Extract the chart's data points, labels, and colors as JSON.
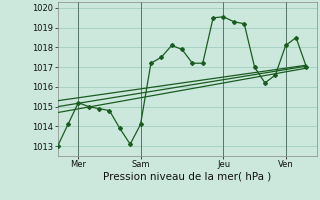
{
  "bg_color": "#cce8dc",
  "grid_color": "#a0cfc0",
  "line_color": "#1a5c20",
  "xlabel": "Pression niveau de la mer( hPa )",
  "xlabel_fontsize": 7.5,
  "yticks": [
    1013,
    1014,
    1015,
    1016,
    1017,
    1018,
    1019,
    1020
  ],
  "ylim": [
    1012.5,
    1020.3
  ],
  "xlim": [
    0,
    50
  ],
  "xtick_positions": [
    4,
    16,
    32,
    44
  ],
  "xtick_labels": [
    "Mer",
    "Sam",
    "Jeu",
    "Ven"
  ],
  "vline_positions": [
    4,
    16,
    32,
    44
  ],
  "series1_x": [
    0,
    2,
    4,
    6,
    8,
    10,
    12,
    14,
    16,
    18,
    20,
    22,
    24,
    26,
    28,
    30,
    32,
    34,
    36,
    38,
    40,
    42,
    44,
    46,
    48
  ],
  "series1_y": [
    1013.0,
    1014.1,
    1015.2,
    1015.0,
    1014.9,
    1014.8,
    1013.9,
    1013.1,
    1014.1,
    1017.2,
    1017.5,
    1018.1,
    1017.9,
    1017.2,
    1017.2,
    1019.5,
    1019.55,
    1019.3,
    1019.2,
    1017.0,
    1016.2,
    1016.6,
    1018.1,
    1018.5,
    1017.0
  ],
  "trend1_x": [
    0,
    48
  ],
  "trend1_y": [
    1014.7,
    1016.95
  ],
  "trend2_x": [
    0,
    48
  ],
  "trend2_y": [
    1015.0,
    1017.05
  ],
  "trend3_x": [
    0,
    48
  ],
  "trend3_y": [
    1015.3,
    1017.1
  ]
}
